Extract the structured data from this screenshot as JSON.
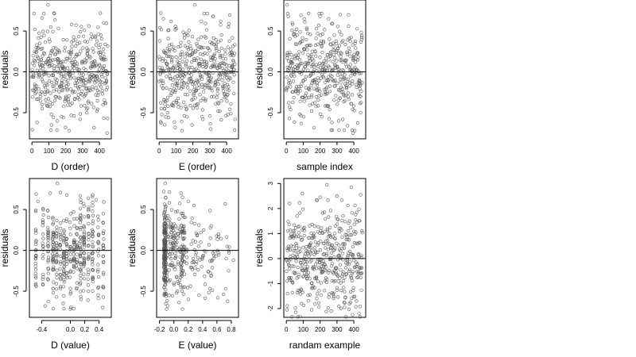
{
  "figure": {
    "background": "#ffffff",
    "point_color": "#555555"
  },
  "chart_data": [
    {
      "type": "scatter",
      "xlabel": "D (order)",
      "ylabel": "residuals",
      "xlim": [
        -15,
        470
      ],
      "ylim": [
        -0.82,
        0.88
      ],
      "xticks": [
        0,
        100,
        200,
        300,
        400
      ],
      "xtick_labels": [
        "0",
        "100",
        "200",
        "300",
        "400"
      ],
      "yticks": [
        -0.5,
        0.0,
        0.5
      ],
      "ytick_labels": [
        "-0.5",
        "0.0",
        "0.5"
      ],
      "hline": 0,
      "n_points": 450,
      "x_pattern": "index",
      "residual_sd": 0.28,
      "points": [
        [
          95,
          0.82
        ],
        [
          130,
          0.72
        ],
        [
          60,
          0.66
        ],
        [
          405,
          0.72
        ],
        [
          425,
          0.6
        ],
        [
          235,
          0.58
        ],
        [
          30,
          -0.62
        ],
        [
          175,
          -0.55
        ],
        [
          285,
          -0.58
        ],
        [
          150,
          -0.6
        ],
        [
          220,
          -0.72
        ],
        [
          115,
          -0.52
        ],
        [
          385,
          -0.48
        ],
        [
          445,
          -0.75
        ],
        [
          60,
          -0.45
        ],
        [
          325,
          -0.5
        ]
      ]
    },
    {
      "type": "scatter",
      "xlabel": "E (order)",
      "ylabel": "residuals",
      "xlim": [
        -15,
        470
      ],
      "ylim": [
        -0.82,
        0.88
      ],
      "xticks": [
        0,
        100,
        200,
        300,
        400
      ],
      "xtick_labels": [
        "0",
        "100",
        "200",
        "300",
        "400"
      ],
      "yticks": [
        -0.5,
        0.0,
        0.5
      ],
      "ytick_labels": [
        "-0.5",
        "0.0",
        "0.5"
      ],
      "hline": 0,
      "n_points": 450,
      "x_pattern": "index",
      "residual_sd": 0.28,
      "points": [
        [
          210,
          0.82
        ],
        [
          10,
          0.72
        ],
        [
          25,
          0.65
        ],
        [
          320,
          0.68
        ],
        [
          365,
          0.62
        ],
        [
          410,
          0.55
        ],
        [
          135,
          -0.72
        ],
        [
          195,
          -0.65
        ],
        [
          95,
          -0.68
        ],
        [
          255,
          -0.55
        ],
        [
          305,
          -0.7
        ],
        [
          450,
          -0.58
        ],
        [
          50,
          -0.5
        ],
        [
          350,
          -0.48
        ]
      ]
    },
    {
      "type": "scatter",
      "xlabel": "sample index",
      "ylabel": "residuals",
      "xlim": [
        -15,
        470
      ],
      "ylim": [
        -0.82,
        0.88
      ],
      "xticks": [
        0,
        100,
        200,
        300,
        400
      ],
      "xtick_labels": [
        "0",
        "100",
        "200",
        "300",
        "400"
      ],
      "yticks": [
        -0.5,
        0.0,
        0.5
      ],
      "ytick_labels": [
        "-0.5",
        "0.0",
        "0.5"
      ],
      "hline": 0,
      "n_points": 450,
      "x_pattern": "index",
      "residual_sd": 0.28,
      "points": [
        [
          5,
          0.82
        ],
        [
          320,
          0.7
        ],
        [
          250,
          0.65
        ],
        [
          405,
          -0.72
        ],
        [
          395,
          -0.75
        ],
        [
          310,
          -0.6
        ],
        [
          80,
          -0.52
        ],
        [
          150,
          -0.48
        ],
        [
          210,
          -0.55
        ],
        [
          270,
          -0.62
        ],
        [
          440,
          -0.5
        ],
        [
          35,
          0.6
        ]
      ]
    },
    {
      "type": "scatter",
      "xlabel": "D (value)",
      "ylabel": "residuals",
      "xlim": [
        -0.57,
        0.57
      ],
      "ylim": [
        -0.82,
        0.88
      ],
      "xticks": [
        -0.4,
        0.0,
        0.2,
        0.4
      ],
      "xtick_labels": [
        "-0.4",
        "0.0",
        "0.2",
        "0.4"
      ],
      "yticks": [
        -0.5,
        0.0,
        0.5
      ],
      "ytick_labels": [
        "-0.5",
        "0.0",
        "0.5"
      ],
      "hline": 0,
      "n_points": 450,
      "x_pattern": "columns",
      "residual_sd": 0.28,
      "x_columns": [
        -0.48,
        -0.38,
        -0.31,
        -0.24,
        -0.19,
        -0.14,
        -0.09,
        -0.05,
        0.0,
        0.05,
        0.09,
        0.14,
        0.19,
        0.25,
        0.31,
        0.39,
        0.46
      ],
      "points": [
        [
          -0.18,
          0.82
        ],
        [
          -0.28,
          0.7
        ],
        [
          0.31,
          0.68
        ],
        [
          0.36,
          0.62
        ],
        [
          -0.45,
          0.6
        ],
        [
          -0.35,
          -0.68
        ],
        [
          0.0,
          -0.72
        ],
        [
          -0.1,
          -0.65
        ],
        [
          0.15,
          -0.6
        ],
        [
          0.45,
          -0.7
        ],
        [
          0.25,
          -0.5
        ]
      ]
    },
    {
      "type": "scatter",
      "xlabel": "E (value)",
      "ylabel": "residuals",
      "xlim": [
        -0.24,
        0.9
      ],
      "ylim": [
        -0.82,
        0.88
      ],
      "xticks": [
        -0.2,
        0.0,
        0.2,
        0.4,
        0.6,
        0.8
      ],
      "xtick_labels": [
        "-0.2",
        "0.0",
        "0.2",
        "0.4",
        "0.6",
        "0.8"
      ],
      "yticks": [
        -0.5,
        0.0,
        0.5
      ],
      "ytick_labels": [
        "-0.5",
        "0.0",
        "0.5"
      ],
      "hline": 0,
      "n_points": 450,
      "x_pattern": "skewed",
      "residual_sd": 0.28,
      "points": [
        [
          -0.12,
          0.82
        ],
        [
          -0.14,
          0.72
        ],
        [
          0.1,
          0.7
        ],
        [
          0.2,
          0.6
        ],
        [
          0.28,
          0.55
        ],
        [
          0.52,
          0.3
        ],
        [
          0.62,
          0.2
        ],
        [
          0.83,
          -0.12
        ],
        [
          0.73,
          -0.1
        ],
        [
          0.12,
          -0.72
        ],
        [
          0.2,
          -0.6
        ],
        [
          0.05,
          -0.5
        ],
        [
          0.35,
          -0.55
        ],
        [
          -0.1,
          -0.72
        ]
      ]
    },
    {
      "type": "scatter",
      "xlabel": "randam example",
      "ylabel": "residuals",
      "xlim": [
        -15,
        470
      ],
      "ylim": [
        -2.35,
        3.2
      ],
      "xticks": [
        0,
        100,
        200,
        300,
        400
      ],
      "xtick_labels": [
        "0",
        "100",
        "200",
        "300",
        "400"
      ],
      "yticks": [
        -2,
        -1,
        0,
        1,
        2,
        3
      ],
      "ytick_labels": [
        "-2",
        "-1",
        "0",
        "1",
        "2",
        "3"
      ],
      "hline": 0,
      "n_points": 450,
      "x_pattern": "index",
      "residual_sd": 0.95,
      "points": [
        [
          240,
          2.95
        ],
        [
          385,
          2.85
        ],
        [
          95,
          2.6
        ],
        [
          20,
          2.2
        ],
        [
          200,
          2.45
        ],
        [
          300,
          2.5
        ],
        [
          440,
          2.55
        ],
        [
          55,
          -2.15
        ],
        [
          150,
          -2.05
        ],
        [
          265,
          -2.1
        ],
        [
          345,
          -1.95
        ],
        [
          430,
          -2.2
        ],
        [
          90,
          -1.8
        ],
        [
          380,
          -1.75
        ]
      ]
    }
  ]
}
